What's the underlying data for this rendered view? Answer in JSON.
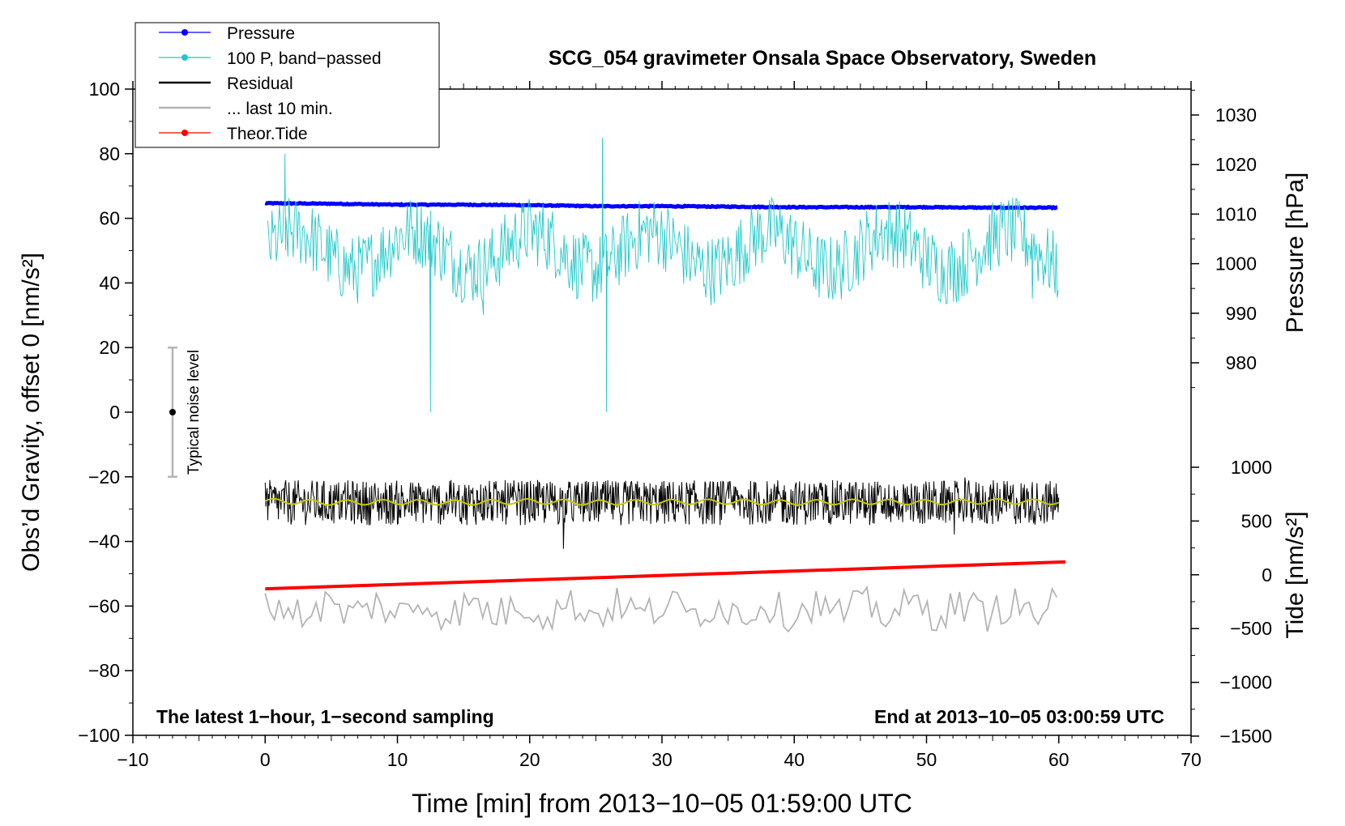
{
  "chart_data": {
    "type": "line",
    "title": "SCG_054 gravimeter Onsala Space Observatory, Sweden",
    "xlabel": "Time [min] from 2013−10−05 01:59:00 UTC",
    "ylabel_left": "Obs’d Gravity, offset 0 [nm/s²]",
    "ylabel_right_top": "Pressure [hPa]",
    "ylabel_right_bottom": "Tide [nm/s²]",
    "xlim": [
      -10,
      70
    ],
    "ylim": [
      -100,
      100
    ],
    "pressure_axis_range": [
      975,
      1035
    ],
    "tide_axis_range": [
      -1500,
      1000
    ],
    "x_ticks": [
      "−10",
      "0",
      "10",
      "20",
      "30",
      "40",
      "50",
      "60",
      "70"
    ],
    "y_ticks": [
      "−100",
      "−80",
      "−60",
      "−40",
      "−20",
      "0",
      "20",
      "40",
      "60",
      "80",
      "100"
    ],
    "pressure_ticks": [
      "980",
      "990",
      "1000",
      "1010",
      "1020",
      "1030"
    ],
    "tide_ticks": [
      "−1500",
      "−1000",
      "−500",
      "0",
      "500",
      "1000"
    ],
    "annotation_left": "The latest 1−hour, 1−second sampling",
    "annotation_right": "End at 2013−10−05 03:00:59 UTC",
    "noise_bar": {
      "label": "Typical noise level",
      "x": -7,
      "center": 0,
      "half_range": 20
    },
    "legend": [
      {
        "label": "Pressure",
        "color": "#0000ff",
        "marker": true
      },
      {
        "label": "100 P, band−passed",
        "color": "#20c8c8",
        "marker": true
      },
      {
        "label": "Residual",
        "color": "#000000",
        "marker": false
      },
      {
        "label": "... last 10 min.",
        "color": "#b4b4b4",
        "marker": false
      },
      {
        "label": "Theor.Tide",
        "color": "#ff0000",
        "marker": true
      }
    ],
    "series": [
      {
        "name": "Pressure",
        "axis": "pressure",
        "color": "#0000ff",
        "x": [
          0,
          5,
          10,
          15,
          20,
          25,
          30,
          35,
          40,
          45,
          50,
          55,
          60
        ],
        "values": [
          1012.2,
          1012.1,
          1011.9,
          1011.9,
          1011.8,
          1011.6,
          1011.6,
          1011.5,
          1011.4,
          1011.4,
          1011.4,
          1011.3,
          1011.3
        ]
      },
      {
        "name": "100 P, band-passed",
        "axis": "gravity",
        "color": "#20c8c8",
        "x": [
          0.5,
          1,
          1.5,
          2.7,
          5,
          7,
          9,
          11,
          12,
          12.5,
          13,
          15,
          16.5,
          17.5,
          19,
          21,
          23,
          25,
          25.5,
          25.8,
          27,
          30,
          33,
          35,
          37,
          39,
          40,
          42,
          44,
          46,
          48,
          50,
          52,
          54,
          56,
          58,
          60
        ],
        "values": [
          60,
          45,
          80,
          55,
          50,
          48,
          60,
          45,
          52,
          0,
          50,
          48,
          30,
          55,
          50,
          45,
          50,
          55,
          85,
          0,
          45,
          50,
          55,
          45,
          50,
          40,
          55,
          45,
          50,
          45,
          55,
          50,
          45,
          50,
          45,
          35,
          45
        ]
      },
      {
        "name": "Residual",
        "axis": "gravity",
        "color": "#000000",
        "x": [
          0,
          5,
          10,
          15,
          20,
          25,
          30,
          35,
          40,
          45,
          50,
          55,
          60
        ],
        "values": [
          -28,
          -28,
          -28,
          -28,
          -28,
          -28,
          -28,
          -28,
          -28,
          -28,
          -28,
          -28,
          -28
        ]
      },
      {
        "name": "Residual smoothed",
        "axis": "gravity",
        "color": "#c8c800",
        "x": [
          0,
          5,
          10,
          15,
          20,
          25,
          30,
          35,
          40,
          45,
          50,
          55,
          60
        ],
        "values": [
          -27.5,
          -28,
          -27.8,
          -28,
          -27.6,
          -28,
          -27.8,
          -27.7,
          -28,
          -27.7,
          -27.9,
          -27.6,
          -27.8
        ]
      },
      {
        "name": "... last 10 min.",
        "axis": "gravity",
        "color": "#b4b4b4",
        "x": [
          0,
          1,
          1.5,
          2,
          3,
          5,
          7,
          9,
          11,
          13.5,
          15,
          17,
          19,
          21,
          23,
          25,
          27,
          29,
          31,
          33,
          35,
          37,
          39,
          41,
          43,
          45,
          47,
          49,
          51,
          52,
          53,
          55,
          57,
          59,
          60
        ],
        "values": [
          -61,
          -66,
          -53,
          -64,
          -59,
          -63,
          -60,
          -62,
          -59,
          -53,
          -62,
          -63,
          -59,
          -64,
          -61,
          -60,
          -63,
          -59,
          -62,
          -58,
          -63,
          -61,
          -64,
          -60,
          -66,
          -61,
          -58,
          -64,
          -60,
          -54,
          -62,
          -62,
          -64,
          -58,
          -61
        ]
      },
      {
        "name": "Theor.Tide",
        "axis": "tide",
        "color": "#ff0000",
        "x": [
          0,
          60.5
        ],
        "values": [
          -130,
          120
        ]
      }
    ]
  }
}
